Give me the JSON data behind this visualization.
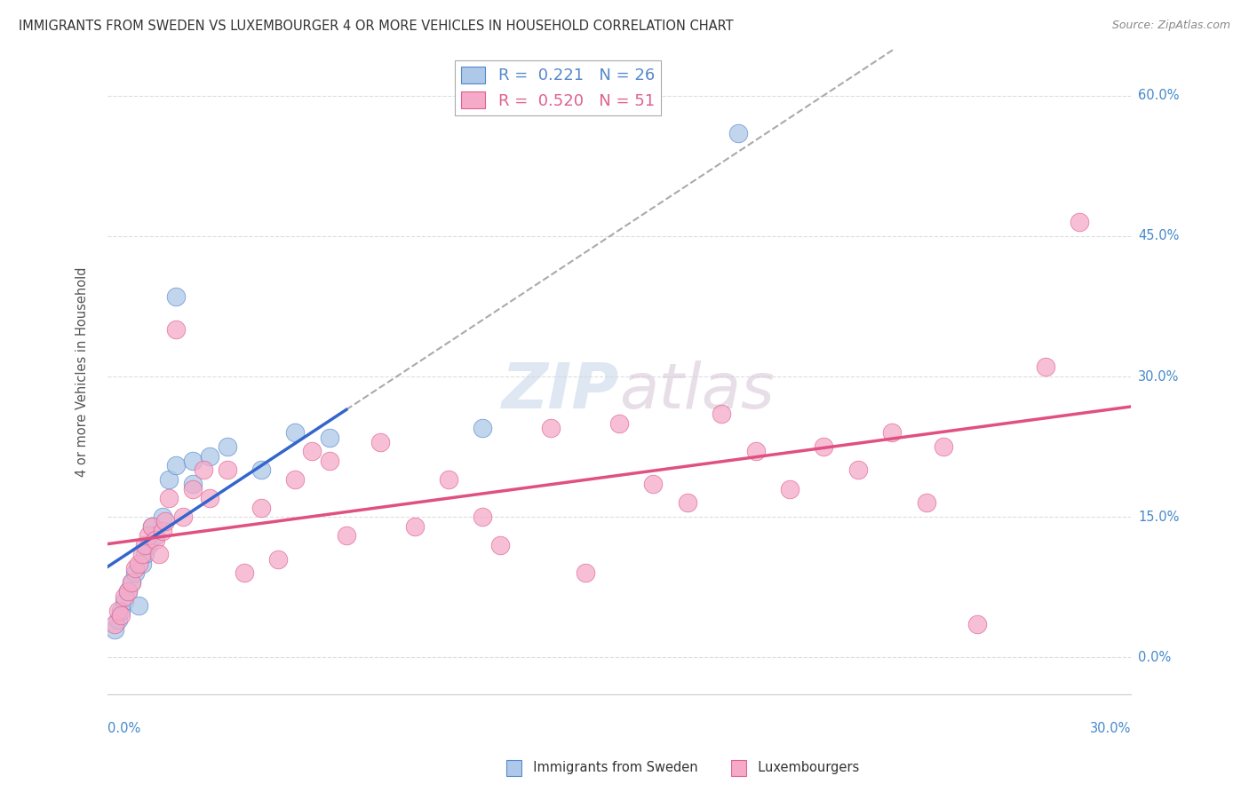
{
  "title": "IMMIGRANTS FROM SWEDEN VS LUXEMBOURGER 4 OR MORE VEHICLES IN HOUSEHOLD CORRELATION CHART",
  "source": "Source: ZipAtlas.com",
  "ylabel": "4 or more Vehicles in Household",
  "ytick_labels": [
    "0.0%",
    "15.0%",
    "30.0%",
    "45.0%",
    "60.0%"
  ],
  "ytick_values": [
    0.0,
    15.0,
    30.0,
    45.0,
    60.0
  ],
  "xmin": 0.0,
  "xmax": 30.0,
  "ymin": -4.0,
  "ymax": 65.0,
  "legend1_R": "0.221",
  "legend1_N": "26",
  "legend2_R": "0.520",
  "legend2_N": "51",
  "color_sweden": "#adc8e8",
  "color_lux": "#f5aac8",
  "color_sweden_dark": "#5588cc",
  "color_lux_dark": "#e06090",
  "color_sweden_line": "#3366cc",
  "color_lux_line": "#e05080",
  "color_gray_dash": "#aaaaaa",
  "sweden_scatter_x": [
    0.2,
    0.3,
    0.4,
    0.5,
    0.6,
    0.7,
    0.8,
    0.9,
    1.0,
    1.1,
    1.2,
    1.3,
    1.4,
    1.6,
    1.8,
    2.0,
    2.5,
    3.0,
    3.5,
    4.5,
    5.5,
    6.5,
    2.5,
    11.0,
    18.5,
    2.0
  ],
  "sweden_scatter_y": [
    3.0,
    4.0,
    5.0,
    6.0,
    7.0,
    8.0,
    9.0,
    5.5,
    10.0,
    11.0,
    12.0,
    14.0,
    13.0,
    15.0,
    19.0,
    20.5,
    21.0,
    21.5,
    22.5,
    20.0,
    24.0,
    23.5,
    18.5,
    24.5,
    56.0,
    38.5
  ],
  "lux_scatter_x": [
    0.2,
    0.3,
    0.4,
    0.5,
    0.6,
    0.7,
    0.8,
    0.9,
    1.0,
    1.1,
    1.2,
    1.3,
    1.4,
    1.5,
    1.6,
    1.7,
    1.8,
    2.0,
    2.2,
    2.5,
    2.8,
    3.0,
    3.5,
    4.0,
    4.5,
    5.0,
    5.5,
    6.0,
    6.5,
    7.0,
    8.0,
    9.0,
    10.0,
    11.0,
    11.5,
    13.0,
    14.0,
    15.0,
    16.0,
    17.0,
    18.0,
    19.0,
    20.0,
    21.0,
    22.0,
    23.0,
    24.0,
    24.5,
    25.5,
    27.5,
    28.5
  ],
  "lux_scatter_y": [
    3.5,
    5.0,
    4.5,
    6.5,
    7.0,
    8.0,
    9.5,
    10.0,
    11.0,
    12.0,
    13.0,
    14.0,
    12.5,
    11.0,
    13.5,
    14.5,
    17.0,
    35.0,
    15.0,
    18.0,
    20.0,
    17.0,
    20.0,
    9.0,
    16.0,
    10.5,
    19.0,
    22.0,
    21.0,
    13.0,
    23.0,
    14.0,
    19.0,
    15.0,
    12.0,
    24.5,
    9.0,
    25.0,
    18.5,
    16.5,
    26.0,
    22.0,
    18.0,
    22.5,
    20.0,
    24.0,
    16.5,
    22.5,
    3.5,
    31.0,
    46.5
  ],
  "watermark_text": "ZIPatlas",
  "background_color": "#ffffff",
  "grid_color": "#dddddd"
}
